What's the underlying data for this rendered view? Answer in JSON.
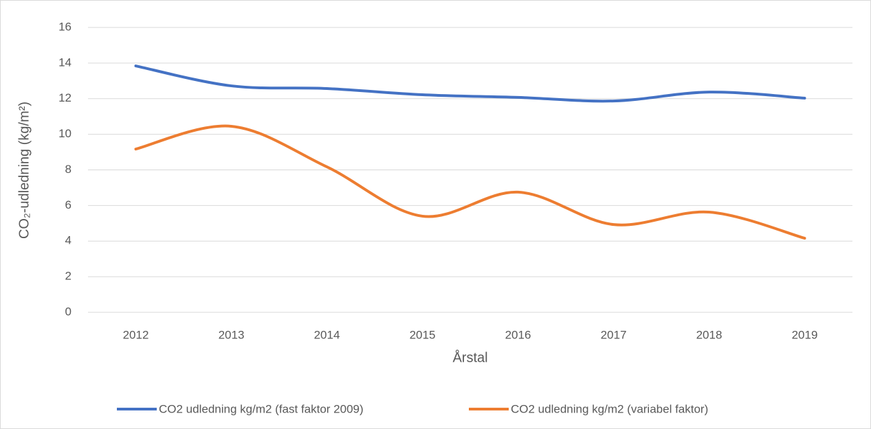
{
  "chart_data": {
    "type": "line",
    "x_label": "Årstal",
    "y_label": "CO₂-udledning (kg/m²)",
    "categories": [
      "2012",
      "2013",
      "2014",
      "2015",
      "2016",
      "2017",
      "2018",
      "2019"
    ],
    "series": [
      {
        "name": "CO2 udledning kg/m2 (fast faktor 2009)",
        "color": "#4472c4",
        "values": [
          13.84,
          12.72,
          12.57,
          12.22,
          12.07,
          11.87,
          12.37,
          12.03
        ]
      },
      {
        "name": "CO2 udledning kg/m2 (variabel faktor)",
        "color": "#ed7d31",
        "values": [
          9.17,
          10.45,
          8.17,
          5.4,
          6.75,
          4.93,
          5.63,
          4.16
        ]
      }
    ],
    "ylim": [
      0,
      16
    ],
    "yticks": [
      0,
      2,
      4,
      6,
      8,
      10,
      12,
      14,
      16
    ],
    "grid": true,
    "smooth": true,
    "legend": "bottom"
  }
}
